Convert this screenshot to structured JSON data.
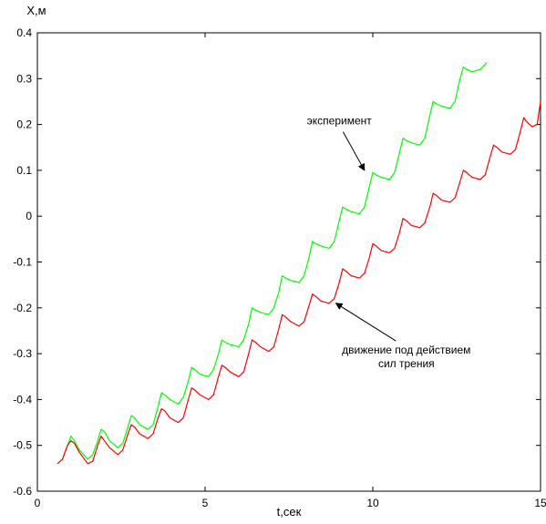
{
  "chart_data": {
    "type": "line",
    "title": "",
    "xlabel": "t,сек",
    "ylabel": "X,м",
    "xlim": [
      0,
      15
    ],
    "ylim": [
      -0.6,
      0.4
    ],
    "x_ticks": [
      0,
      5,
      10,
      15
    ],
    "y_ticks": [
      -0.6,
      -0.5,
      -0.4,
      -0.3,
      -0.2,
      -0.1,
      0,
      0.1,
      0.2,
      0.3,
      0.4
    ],
    "x_tick_labels": [
      "0",
      "5",
      "10",
      "15"
    ],
    "y_tick_labels": [
      "-0.6",
      "-0.5",
      "-0.4",
      "-0.3",
      "-0.2",
      "-0.1",
      "0",
      "0.1",
      "0.2",
      "0.3",
      "0.4"
    ],
    "grid": false,
    "series": [
      {
        "name": "эксперимент",
        "color": "#00ff00",
        "x": [
          0.6,
          0.75,
          0.9,
          1.0,
          1.1,
          1.25,
          1.5,
          1.65,
          1.8,
          1.9,
          2.0,
          2.15,
          2.4,
          2.55,
          2.7,
          2.8,
          2.9,
          3.05,
          3.3,
          3.45,
          3.6,
          3.7,
          3.8,
          3.95,
          4.2,
          4.35,
          4.5,
          4.6,
          4.7,
          4.85,
          5.1,
          5.25,
          5.4,
          5.5,
          5.6,
          5.75,
          6.0,
          6.15,
          6.3,
          6.4,
          6.5,
          6.65,
          6.9,
          7.05,
          7.2,
          7.3,
          7.4,
          7.55,
          7.8,
          7.95,
          8.1,
          8.2,
          8.3,
          8.45,
          8.7,
          8.85,
          9.0,
          9.1,
          9.2,
          9.35,
          9.6,
          9.75,
          9.9,
          10.0,
          10.1,
          10.25,
          10.5,
          10.65,
          10.8,
          10.9,
          11.0,
          11.15,
          11.4,
          11.55,
          11.7,
          11.8,
          11.9,
          12.05,
          12.3,
          12.45,
          12.6,
          12.7,
          12.8,
          12.95,
          13.2,
          13.4
        ],
        "y": [
          -0.54,
          -0.53,
          -0.5,
          -0.48,
          -0.49,
          -0.51,
          -0.53,
          -0.52,
          -0.49,
          -0.465,
          -0.47,
          -0.49,
          -0.505,
          -0.495,
          -0.46,
          -0.435,
          -0.44,
          -0.455,
          -0.465,
          -0.455,
          -0.415,
          -0.385,
          -0.39,
          -0.4,
          -0.41,
          -0.395,
          -0.36,
          -0.33,
          -0.335,
          -0.345,
          -0.35,
          -0.335,
          -0.3,
          -0.27,
          -0.275,
          -0.28,
          -0.285,
          -0.27,
          -0.235,
          -0.2,
          -0.205,
          -0.21,
          -0.215,
          -0.2,
          -0.165,
          -0.13,
          -0.135,
          -0.14,
          -0.145,
          -0.13,
          -0.09,
          -0.055,
          -0.06,
          -0.065,
          -0.07,
          -0.055,
          -0.01,
          0.02,
          0.015,
          0.01,
          0.005,
          0.02,
          0.065,
          0.095,
          0.09,
          0.085,
          0.08,
          0.095,
          0.14,
          0.17,
          0.165,
          0.16,
          0.155,
          0.17,
          0.22,
          0.25,
          0.245,
          0.24,
          0.235,
          0.25,
          0.3,
          0.325,
          0.32,
          0.315,
          0.32,
          0.335
        ]
      },
      {
        "name": "движение под действием сил трения",
        "color": "#ff0000",
        "x": [
          0.6,
          0.75,
          0.9,
          1.0,
          1.1,
          1.25,
          1.5,
          1.65,
          1.8,
          1.9,
          2.0,
          2.15,
          2.4,
          2.55,
          2.7,
          2.8,
          2.9,
          3.05,
          3.3,
          3.45,
          3.6,
          3.7,
          3.8,
          3.95,
          4.2,
          4.35,
          4.5,
          4.6,
          4.7,
          4.85,
          5.1,
          5.25,
          5.4,
          5.5,
          5.6,
          5.75,
          6.0,
          6.15,
          6.3,
          6.4,
          6.5,
          6.65,
          6.9,
          7.05,
          7.2,
          7.3,
          7.4,
          7.55,
          7.8,
          7.95,
          8.1,
          8.2,
          8.3,
          8.45,
          8.7,
          8.85,
          9.0,
          9.1,
          9.2,
          9.35,
          9.6,
          9.75,
          9.9,
          10.0,
          10.1,
          10.25,
          10.5,
          10.65,
          10.8,
          10.9,
          11.0,
          11.15,
          11.4,
          11.55,
          11.7,
          11.8,
          11.9,
          12.05,
          12.3,
          12.45,
          12.6,
          12.7,
          12.8,
          12.95,
          13.2,
          13.35,
          13.5,
          13.6,
          13.7,
          13.85,
          14.1,
          14.25,
          14.4,
          14.5,
          14.6,
          14.75,
          14.9,
          15.0
        ],
        "y": [
          -0.54,
          -0.53,
          -0.5,
          -0.49,
          -0.495,
          -0.515,
          -0.54,
          -0.535,
          -0.5,
          -0.48,
          -0.49,
          -0.505,
          -0.52,
          -0.51,
          -0.475,
          -0.455,
          -0.46,
          -0.475,
          -0.485,
          -0.475,
          -0.44,
          -0.42,
          -0.425,
          -0.44,
          -0.45,
          -0.44,
          -0.4,
          -0.375,
          -0.38,
          -0.39,
          -0.4,
          -0.39,
          -0.35,
          -0.325,
          -0.33,
          -0.34,
          -0.35,
          -0.34,
          -0.3,
          -0.27,
          -0.275,
          -0.285,
          -0.295,
          -0.285,
          -0.245,
          -0.215,
          -0.22,
          -0.23,
          -0.24,
          -0.23,
          -0.195,
          -0.17,
          -0.175,
          -0.185,
          -0.19,
          -0.18,
          -0.145,
          -0.115,
          -0.12,
          -0.13,
          -0.135,
          -0.125,
          -0.09,
          -0.06,
          -0.065,
          -0.075,
          -0.08,
          -0.07,
          -0.035,
          -0.005,
          -0.01,
          -0.02,
          -0.025,
          -0.015,
          0.02,
          0.05,
          0.045,
          0.035,
          0.03,
          0.04,
          0.075,
          0.1,
          0.095,
          0.085,
          0.08,
          0.09,
          0.13,
          0.155,
          0.15,
          0.14,
          0.135,
          0.145,
          0.185,
          0.215,
          0.205,
          0.195,
          0.2,
          0.25
        ]
      }
    ],
    "annotations": [
      {
        "id": "experiment",
        "lines": [
          "эксперимент"
        ],
        "text_pos": [
          9.0,
          0.2
        ],
        "arrow_to": [
          9.75,
          0.1
        ]
      },
      {
        "id": "friction",
        "lines": [
          "движение под действием",
          "сил трения"
        ],
        "text_pos": [
          11.0,
          -0.3
        ],
        "arrow_to": [
          8.9,
          -0.19
        ]
      }
    ]
  }
}
